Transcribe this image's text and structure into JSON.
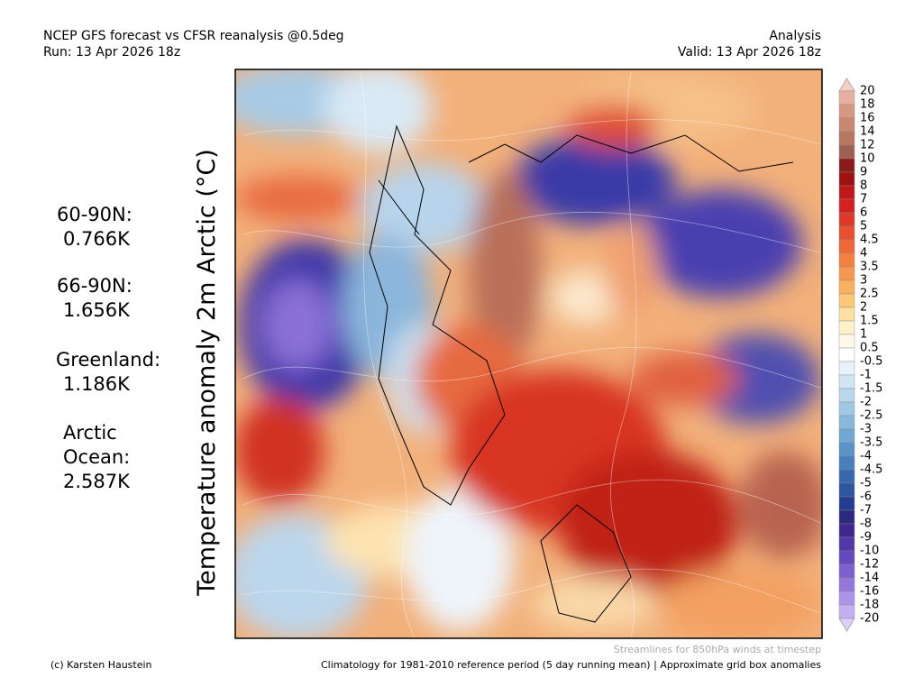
{
  "header": {
    "title": "NCEP GFS forecast vs CFSR reanalysis @0.5deg",
    "run": "Run: 13 Apr 2026 18z",
    "mode": "Analysis",
    "valid": "Valid: 13 Apr 2026 18z"
  },
  "axis_label": "Temperature anomaly 2m Arctic (°C)",
  "stats": [
    {
      "label": [
        "60-90N:"
      ],
      "value": "0.766K"
    },
    {
      "label": [
        "66-90N:"
      ],
      "value": "1.656K"
    },
    {
      "label": [
        "Greenland:"
      ],
      "value": "1.186K"
    },
    {
      "label": [
        "Arctic",
        "Ocean:"
      ],
      "value": "2.587K"
    }
  ],
  "colorbar": {
    "levels": [
      "20",
      "18",
      "16",
      "14",
      "12",
      "10",
      "9",
      "8",
      "7",
      "6",
      "5",
      "4.5",
      "4",
      "3.5",
      "3",
      "2.5",
      "2",
      "1.5",
      "1",
      "0.5",
      "-0.5",
      "-1",
      "-1.5",
      "-2",
      "-2.5",
      "-3",
      "-3.5",
      "-4",
      "-4.5",
      "-5",
      "-6",
      "-7",
      "-8",
      "-9",
      "-10",
      "-12",
      "-14",
      "-16",
      "-18",
      "-20"
    ],
    "colors": [
      "#f4d0c0",
      "#e8b0a0",
      "#d89880",
      "#c98870",
      "#b87860",
      "#a06050",
      "#8b1a1a",
      "#a01010",
      "#c01818",
      "#d42020",
      "#e03828",
      "#e85030",
      "#f06838",
      "#f48040",
      "#f89850",
      "#fab060",
      "#fcc878",
      "#fde0a0",
      "#fef0c8",
      "#fff8e8",
      "#ffffff",
      "#e8f2fa",
      "#d0e6f4",
      "#b8d8ec",
      "#a0c8e4",
      "#88b8dc",
      "#70a8d4",
      "#5894c8",
      "#4880bc",
      "#3868b0",
      "#2c54a0",
      "#243c90",
      "#2a2880",
      "#3c2890",
      "#5038a8",
      "#6448c0",
      "#7c60d0",
      "#9478dc",
      "#ac94e8",
      "#c4b0f0",
      "#dcd0f8"
    ]
  },
  "footer": {
    "streamlines": "Streamlines for 850hPa winds at timestep",
    "credit": "(c) Karsten Haustein",
    "climatology": "Climatology for 1981-2010 reference period (5 day running mean) | Approximate grid box anomalies"
  }
}
